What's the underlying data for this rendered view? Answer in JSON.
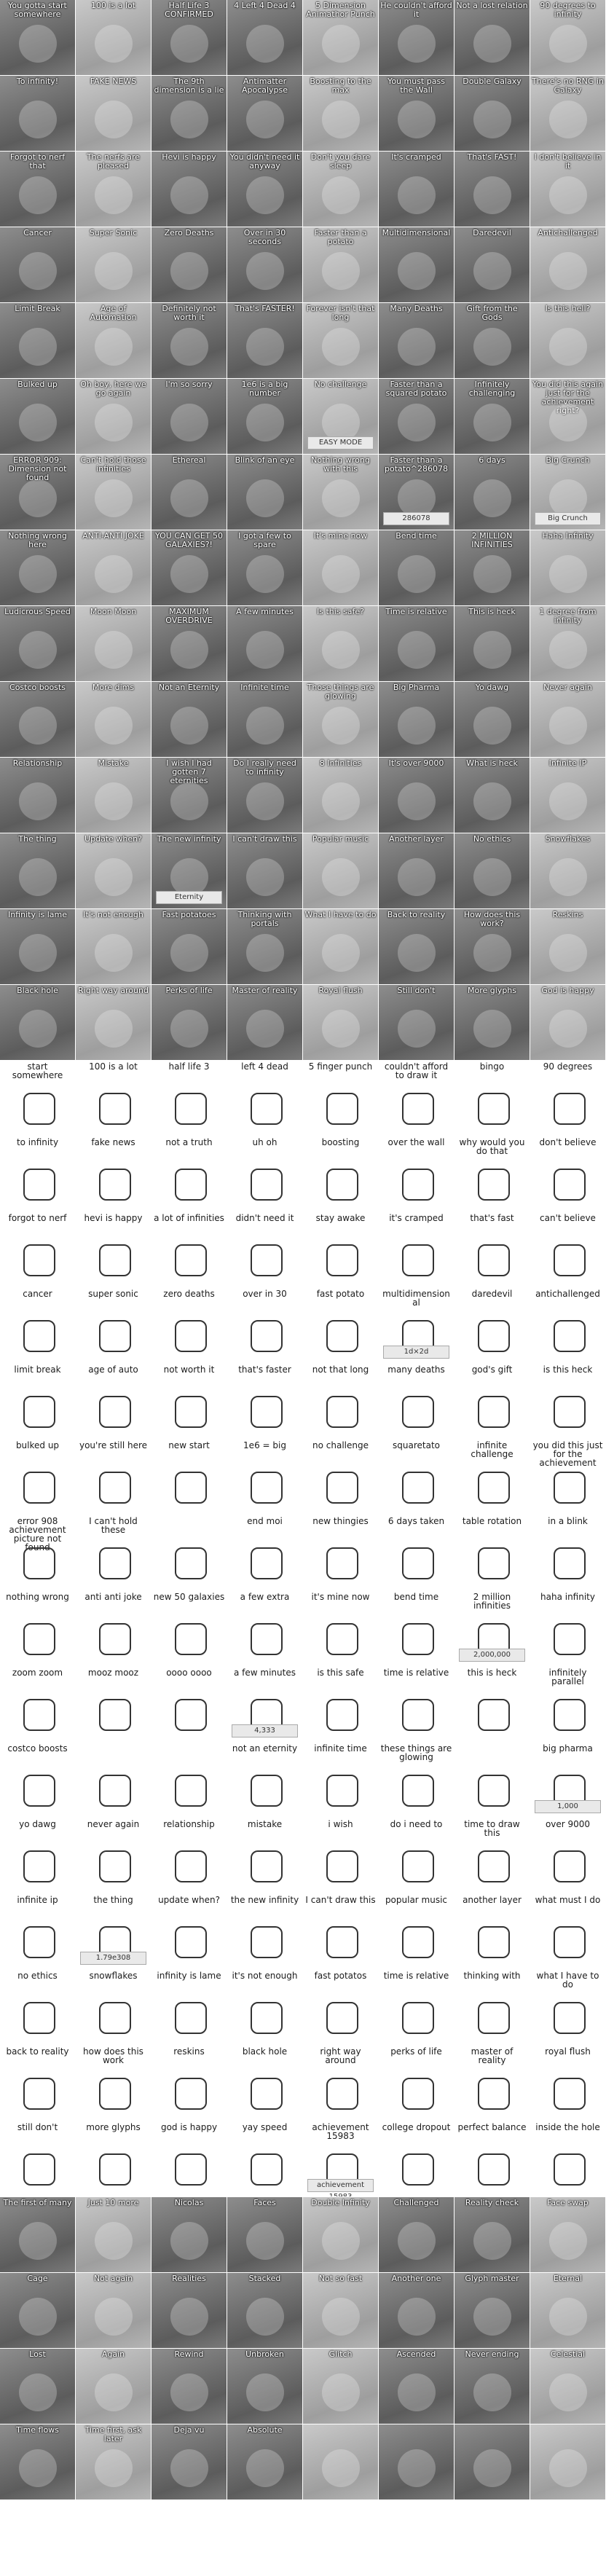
{
  "gallery": {
    "row_photo_1": [
      "You gotta start somewhere",
      "100 is a lot",
      "Half Life 3 CONFIRMED",
      "4 Left 4 Dead 4",
      "5 Dimension Animathor Punch",
      "He couldn't afford it",
      "Not a lost relation",
      "90 degrees to infinity"
    ],
    "row_photo_2": [
      "To infinity!",
      "FAKE NEWS",
      "The 9th dimension is a lie",
      "Antimatter Apocalypse",
      "Boosting to the max",
      "You must pass the Wall",
      "Double Galaxy",
      "There's no RNG in Galaxy"
    ],
    "row_photo_3": [
      "Forgot to nerf that",
      "The nerfs are pleased",
      "Hevi is happy",
      "You didn't need it anyway",
      "Don't you dare sleep",
      "It's cramped",
      "That's FAST!",
      "I don't believe in it"
    ],
    "row_photo_4": [
      "Cancer",
      "Super Sonic",
      "Zero Deaths",
      "Over in 30 seconds",
      "Faster than a potato",
      "Multidimensional",
      "Daredevil",
      "Antichallenged"
    ],
    "row_photo_5": [
      "Limit Break",
      "Age of Automation",
      "Definitely not worth it",
      "That's FASTER!",
      "Forever isn't that long",
      "Many Deaths",
      "Gift from the Gods",
      "Is this hell?"
    ],
    "row_photo_6": [
      "Bulked up",
      "Oh boy, here we go again",
      "I'm so sorry",
      "1e6 is a big number",
      "No challenge",
      "Faster than a squared potato",
      "Infinitely challenging",
      "You did this again just for the achievement right?"
    ],
    "row_photo_7": [
      "ERROR 909: Dimension not found",
      "Can't hold those infinities",
      "Ethereal",
      "Blink of an eye",
      "Nothing wrong with this",
      "Faster than a potato^286078",
      "6 days",
      "Big Crunch"
    ],
    "row_photo_8": [
      "Nothing wrong here",
      "ANTI-ANTI JOKE",
      "YOU CAN GET 50 GALAXIES?!",
      "I got a few to spare",
      "It's mine now",
      "Bend time",
      "2 MILLION INFINITIES",
      "Haha Infinity"
    ],
    "row_photo_9": [
      "Ludicrous Speed",
      "Moon Moon",
      "MAXIMUM OVERDRIVE",
      "A few minutes",
      "Is this safe?",
      "Time is relative",
      "This is heck",
      "1 degree from infinity"
    ],
    "row_photo_10": [
      "Costco boosts",
      "More dims",
      "Not an Eternity",
      "Infinite time",
      "Those things are glowing",
      "Big Pharma",
      "Yo dawg",
      "Never again"
    ],
    "row_photo_11": [
      "Relationship",
      "Mistake",
      "I wish I had gotten 7 eternities",
      "Do I really need to infinity",
      "8 Infinities",
      "It's over 9000",
      "What is heck",
      "Infinite IP"
    ],
    "row_photo_12": [
      "The thing",
      "Update when?",
      "The new infinity",
      "I can't draw this",
      "Popular music",
      "Another layer",
      "No ethics",
      "Snowflakes"
    ],
    "row_photo_13": [
      "Infinity is lame",
      "It's not enough",
      "Fast potatoes",
      "Thinking with portals",
      "What I have to do",
      "Back to reality",
      "How does this work?",
      "Reskins"
    ],
    "row_photo_14": [
      "Black hole",
      "Right way around",
      "Perks of life",
      "Master of reality",
      "Royal flush",
      "Still don't",
      "More glyphs",
      "God is happy"
    ],
    "eternity_badge": "Eternity",
    "easy_mode": "EASY MODE",
    "counter_value": "286078",
    "big_crunch_button": "Big Crunch",
    "drawn_rows": [
      [
        "start somewhere",
        "100 is a lot",
        "half life 3",
        "left 4 dead",
        "5 finger punch",
        "couldn't afford to draw it",
        "bingo",
        "90 degrees"
      ],
      [
        "to infinity",
        "fake news",
        "not a truth",
        "uh oh",
        "boosting",
        "over the wall",
        "why would you do that",
        "don't believe"
      ],
      [
        "forgot to nerf",
        "hevi is happy",
        "a lot of infinities",
        "didn't need it",
        "stay awake",
        "it's cramped",
        "that's fast",
        "can't believe"
      ],
      [
        "cancer",
        "super sonic",
        "zero deaths",
        "over in 30",
        "fast potato",
        "multidimensional",
        "daredevil",
        "antichallenged"
      ],
      [
        "limit break",
        "age of auto",
        "not worth it",
        "that's faster",
        "not that long",
        "many deaths",
        "god's gift",
        "is this heck"
      ],
      [
        "bulked up",
        "you're still here",
        "new start",
        "1e6 = big",
        "no challenge",
        "squaretato",
        "infinite challenge",
        "you did this just for the achievement"
      ],
      [
        "error 908 achievement picture not found",
        "I can't hold these",
        "",
        "end moi",
        "new thingies",
        "6 days taken",
        "table rotation",
        "in a blink"
      ],
      [
        "nothing wrong",
        "anti anti joke",
        "new 50 galaxies",
        "a few extra",
        "it's mine now",
        "bend time",
        "2 million infinities",
        "haha infinity"
      ],
      [
        "zoom zoom",
        "mooz mooz",
        "oooo oooo",
        "a few minutes",
        "is this safe",
        "time is relative",
        "this is heck",
        "infinitely parallel"
      ],
      [
        "costco boosts",
        "",
        "",
        "not an eternity",
        "infinite time",
        "these things are glowing",
        "",
        "big pharma"
      ],
      [
        "yo dawg",
        "never again",
        "relationship",
        "mistake",
        "i wish",
        "do i need to",
        "time to draw this",
        "over 9000"
      ],
      [
        "infinite ip",
        "the thing",
        "update when?",
        "the new infinity",
        "I can't draw this",
        "popular music",
        "another layer",
        "what must I do"
      ],
      [
        "no ethics",
        "snowflakes",
        "infinity is lame",
        "it's not enough",
        "fast potatos",
        "time is relative",
        "thinking with",
        "what I have to do"
      ],
      [
        "back to reality",
        "how does this work",
        "reskins",
        "black hole",
        "right way around",
        "perks of life",
        "master of reality",
        "royal flush"
      ],
      [
        "still don't",
        "more glyphs",
        "god is happy",
        "yay speed",
        "achievement 15983",
        "college dropout",
        "perfect balance",
        "inside the hole"
      ]
    ],
    "sample_values": {
      "number_a": "1.79e308",
      "number_b": "2,000,000",
      "number_c": "4,333",
      "number_d": "1,000",
      "achievement_id": "achievement 15983",
      "formula": "1d×2d"
    },
    "row_bottom_photo_1": [
      "The first of many",
      "Just 10 more",
      "Nicolas",
      "Faces",
      "Double Infinity",
      "Challenged",
      "Reality check",
      "Face swap"
    ],
    "row_bottom_photo_2": [
      "Cage",
      "Not again",
      "Realities",
      "Stacked",
      "Not so fast",
      "Another one",
      "Glyph master",
      "Eternal"
    ],
    "row_bottom_photo_3": [
      "Lost",
      "Again",
      "Rewind",
      "Unbroken",
      "Glitch",
      "Ascended",
      "Never ending",
      "Celestial"
    ],
    "row_bottom_photo_4": [
      "Time flows",
      "Time first, ask later",
      "Deja vu",
      "Absolute",
      "",
      "",
      "",
      ""
    ]
  }
}
